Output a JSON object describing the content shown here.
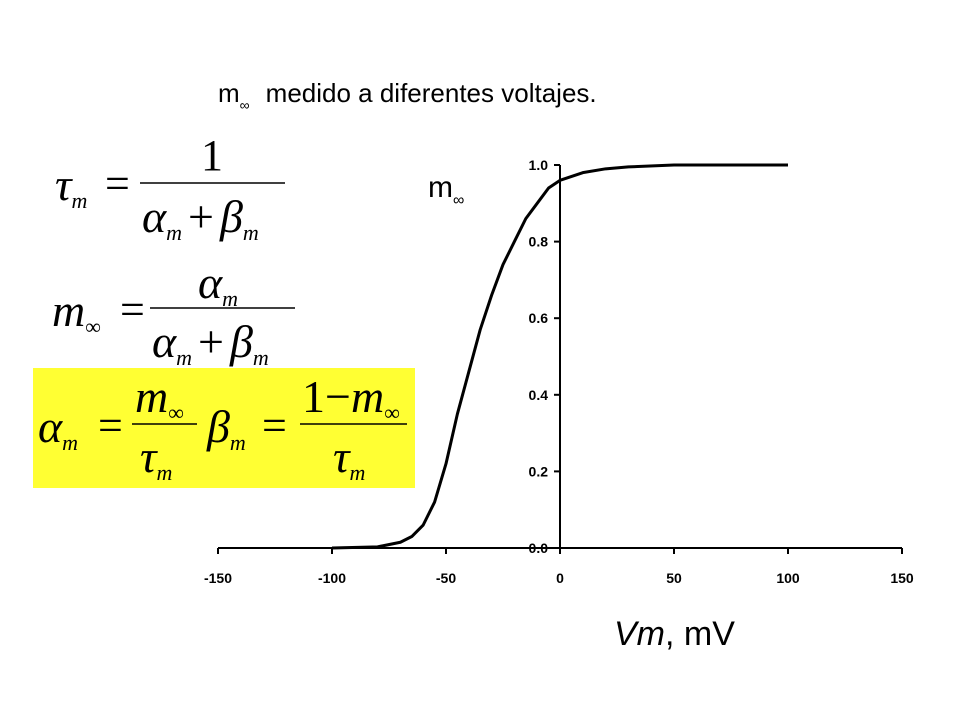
{
  "chart_data": {
    "type": "line",
    "title": {
      "symbol": "m",
      "subscript": "∞",
      "text": "medido a diferentes voltajes."
    },
    "ylabel": {
      "symbol": "m",
      "subscript": "∞"
    },
    "xlabel": {
      "italic": "Vm",
      "text": ", mV"
    },
    "x": [
      -100,
      -80,
      -70,
      -65,
      -60,
      -55,
      -50,
      -45,
      -40,
      -35,
      -30,
      -25,
      -20,
      -15,
      -10,
      -5,
      0,
      10,
      20,
      30,
      50,
      100
    ],
    "values": [
      0,
      0.003,
      0.015,
      0.03,
      0.06,
      0.12,
      0.22,
      0.35,
      0.46,
      0.57,
      0.66,
      0.74,
      0.8,
      0.86,
      0.9,
      0.94,
      0.96,
      0.98,
      0.99,
      0.995,
      1,
      1
    ],
    "color": "#000000",
    "xlim": [
      -150,
      150
    ],
    "xticks": [
      -150,
      -100,
      -50,
      0,
      50,
      100,
      150
    ],
    "ylim": [
      0,
      1
    ],
    "yticks": [
      {
        "value": 0,
        "label": "0.0"
      },
      0.2,
      0.4,
      0.6,
      0.8,
      {
        "value": 1,
        "label": "1.0"
      }
    ],
    "grid": false
  },
  "formulas": {
    "tau": "τ",
    "alpha": "α",
    "beta": "β",
    "m": "m",
    "inf": "∞",
    "one": "1",
    "plus": "+",
    "minus": "−",
    "eq": "="
  }
}
